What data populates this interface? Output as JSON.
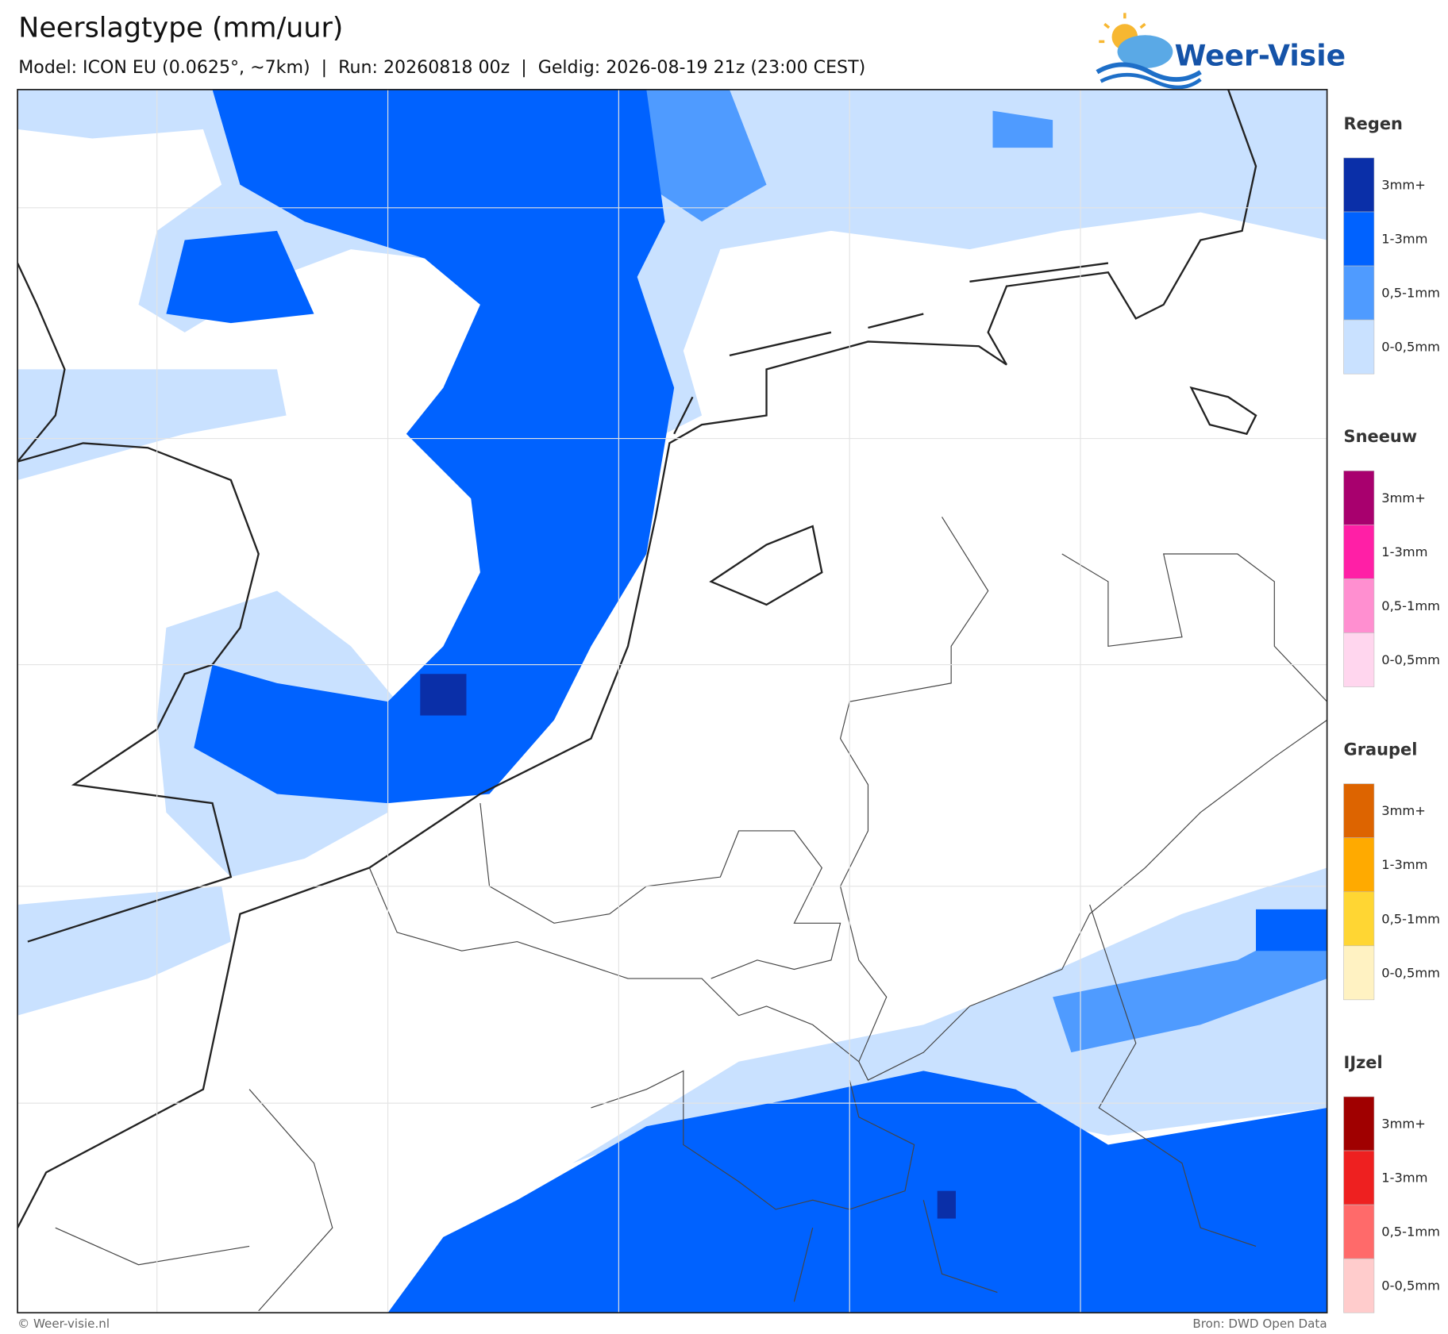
{
  "header": {
    "title": "Neerslagtype (mm/uur)",
    "subtitle": "Model: ICON EU (0.0625°, ~7km)  |  Run: 20260818 00z  |  Geldig: 2026-08-19 21z (23:00 CEST)"
  },
  "logo": {
    "text": "Weer-Visie"
  },
  "legend": {
    "groups": [
      {
        "title": "Regen",
        "items": [
          {
            "label": "3mm+",
            "color": "#0a2fa8"
          },
          {
            "label": "1-3mm",
            "color": "#0062ff"
          },
          {
            "label": "0,5-1mm",
            "color": "#4f9bff"
          },
          {
            "label": "0-0,5mm",
            "color": "#c9e1ff"
          }
        ]
      },
      {
        "title": "Sneeuw",
        "items": [
          {
            "label": "3mm+",
            "color": "#a8006e"
          },
          {
            "label": "1-3mm",
            "color": "#ff1fa6"
          },
          {
            "label": "0,5-1mm",
            "color": "#ff8fd0"
          },
          {
            "label": "0-0,5mm",
            "color": "#ffd6ee"
          }
        ]
      },
      {
        "title": "Graupel",
        "items": [
          {
            "label": "3mm+",
            "color": "#dd6400"
          },
          {
            "label": "1-3mm",
            "color": "#ffaa00"
          },
          {
            "label": "0,5-1mm",
            "color": "#ffd633"
          },
          {
            "label": "0-0,5mm",
            "color": "#fff2c2"
          }
        ]
      },
      {
        "title": "IJzel",
        "items": [
          {
            "label": "3mm+",
            "color": "#a00000"
          },
          {
            "label": "1-3mm",
            "color": "#ee2020"
          },
          {
            "label": "0,5-1mm",
            "color": "#ff6a6a"
          },
          {
            "label": "0-0,5mm",
            "color": "#ffcccc"
          }
        ]
      }
    ]
  },
  "footer": {
    "left": "© Weer-visie.nl",
    "right": "Bron: DWD Open Data"
  }
}
